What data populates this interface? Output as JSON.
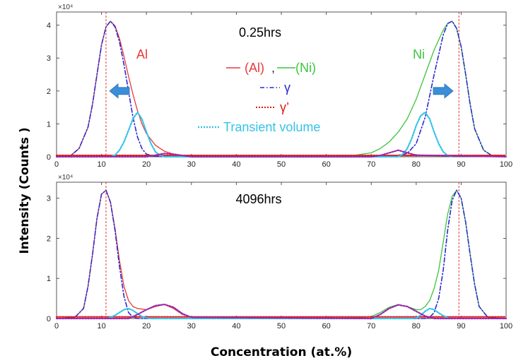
{
  "xlabel": "Concentration (at.%)",
  "ylabel": "Intensity (Counts )",
  "colors": {
    "al": "#e8383b",
    "ni": "#3cc43c",
    "gamma": "#2a2ad0",
    "gamma_prime": "#e01818",
    "transient": "#35c3e8",
    "overlap": "#9a2aa8",
    "arrow": "#3a8fd8",
    "refline": "#e53935"
  },
  "chart_data": [
    {
      "type": "line",
      "title": "0.25hrs",
      "exponent_label": "×10⁴",
      "xlim": [
        0,
        100
      ],
      "ylim": [
        0,
        4.4
      ],
      "x_ticks": [
        "0",
        "10",
        "20",
        "30",
        "40",
        "50",
        "60",
        "70",
        "80",
        "90",
        "100"
      ],
      "y_ticks": [
        "0",
        "1",
        "2",
        "3",
        "4"
      ],
      "reference_lines_x": [
        11.0,
        89.5
      ],
      "labels": {
        "al": "Al",
        "ni": "Ni"
      },
      "legend": {
        "al": "(Al)",
        "comma": ",",
        "ni": "(Ni)",
        "gamma": "γ",
        "gamma_prime": "γ’",
        "transient": "Transient volume"
      },
      "arrows": [
        {
          "direction": "left",
          "x": 14
        },
        {
          "direction": "right",
          "x": 86
        }
      ],
      "series": [
        {
          "name": "(Al)",
          "key": "al",
          "style": "solid",
          "x": [
            0,
            3,
            5,
            7,
            8,
            9,
            10,
            11,
            12,
            13,
            14,
            15,
            16,
            17,
            18,
            19,
            20,
            22,
            24,
            26,
            28,
            30,
            35,
            40
          ],
          "y": [
            0,
            0.02,
            0.25,
            0.9,
            1.6,
            2.5,
            3.4,
            3.95,
            4.12,
            3.98,
            3.6,
            3.05,
            2.45,
            1.9,
            1.4,
            1.0,
            0.7,
            0.35,
            0.17,
            0.08,
            0.04,
            0.02,
            0,
            0
          ]
        },
        {
          "name": "(Ni)",
          "key": "ni",
          "style": "solid",
          "x": [
            60,
            65,
            70,
            72,
            74,
            76,
            78,
            80,
            82,
            84,
            86,
            87,
            88,
            89,
            90,
            91,
            92,
            93,
            95,
            97,
            100
          ],
          "y": [
            0,
            0.02,
            0.12,
            0.25,
            0.45,
            0.75,
            1.15,
            1.75,
            2.5,
            3.25,
            3.85,
            4.05,
            4.12,
            3.9,
            3.35,
            2.5,
            1.6,
            0.85,
            0.2,
            0.02,
            0
          ]
        },
        {
          "name": "γ",
          "key": "gamma",
          "style": "dashdot",
          "x": [
            0,
            3,
            5,
            7,
            8,
            9,
            10,
            11,
            12,
            13,
            14,
            15,
            16,
            17,
            18,
            19,
            20,
            22,
            25,
            30,
            70,
            75,
            78,
            80,
            82,
            84,
            86,
            87,
            88,
            89,
            90,
            91,
            92,
            93,
            95,
            97,
            100
          ],
          "y": [
            0,
            0.02,
            0.25,
            0.9,
            1.6,
            2.5,
            3.4,
            3.95,
            4.12,
            3.95,
            3.5,
            2.8,
            2.0,
            1.2,
            0.6,
            0.25,
            0.08,
            0.01,
            0,
            0,
            0,
            0.02,
            0.1,
            0.4,
            1.2,
            2.5,
            3.7,
            4.05,
            4.12,
            3.9,
            3.35,
            2.5,
            1.6,
            0.85,
            0.2,
            0.02,
            0
          ]
        },
        {
          "name": "γ’",
          "key": "gamma_prime",
          "style": "dotted",
          "x": [
            0,
            10,
            20,
            30,
            40,
            50,
            60,
            70,
            80,
            90,
            100
          ],
          "y": [
            0.04,
            0.04,
            0.04,
            0.04,
            0.04,
            0.04,
            0.04,
            0.04,
            0.04,
            0.04,
            0.04
          ]
        },
        {
          "name": "Transient volume",
          "key": "transient",
          "style": "dotted",
          "x": [
            12,
            13,
            14,
            15,
            16,
            17,
            18,
            19,
            20,
            21,
            22,
            23,
            24,
            76,
            77,
            78,
            79,
            80,
            81,
            82,
            83,
            84,
            85,
            86,
            87,
            88
          ],
          "y": [
            0,
            0.05,
            0.2,
            0.45,
            0.8,
            1.15,
            1.35,
            1.15,
            0.75,
            0.4,
            0.15,
            0.04,
            0,
            0,
            0.08,
            0.25,
            0.55,
            0.95,
            1.25,
            1.35,
            1.15,
            0.75,
            0.4,
            0.15,
            0.04,
            0
          ]
        },
        {
          "name": "",
          "key": "overlap",
          "style": "dotted",
          "x": [
            0,
            20,
            22,
            24,
            26,
            28,
            30,
            70,
            72,
            74,
            76,
            78,
            80,
            100
          ],
          "y": [
            0,
            0,
            0.05,
            0.1,
            0.08,
            0.04,
            0,
            0,
            0.04,
            0.12,
            0.2,
            0.12,
            0.05,
            0
          ]
        }
      ]
    },
    {
      "type": "line",
      "title": "4096hrs",
      "exponent_label": "×10⁴",
      "xlim": [
        0,
        100
      ],
      "ylim": [
        0,
        3.4
      ],
      "x_ticks": [
        "0",
        "10",
        "20",
        "30",
        "40",
        "50",
        "60",
        "70",
        "80",
        "90",
        "100"
      ],
      "y_ticks": [
        "0",
        "1",
        "2",
        "3"
      ],
      "reference_lines_x": [
        11.0,
        89.5
      ],
      "series": [
        {
          "name": "(Al)",
          "key": "al",
          "style": "solid",
          "x": [
            0,
            4,
            6,
            7,
            8,
            9,
            10,
            11,
            12,
            13,
            14,
            15,
            16,
            17,
            18,
            20,
            22,
            24,
            26,
            28,
            30,
            35,
            40
          ],
          "y": [
            0,
            0.02,
            0.25,
            0.8,
            1.6,
            2.5,
            3.1,
            3.2,
            2.9,
            2.25,
            1.45,
            0.8,
            0.45,
            0.3,
            0.25,
            0.22,
            0.3,
            0.35,
            0.25,
            0.1,
            0.03,
            0,
            0
          ]
        },
        {
          "name": "(Ni)",
          "key": "ni",
          "style": "solid",
          "x": [
            60,
            68,
            70,
            72,
            74,
            76,
            78,
            80,
            81,
            82,
            83,
            84,
            85,
            86,
            87,
            88,
            89,
            90,
            91,
            92,
            93,
            94,
            96,
            100
          ],
          "y": [
            0,
            0.02,
            0.05,
            0.15,
            0.28,
            0.35,
            0.3,
            0.22,
            0.22,
            0.3,
            0.45,
            0.75,
            1.2,
            1.9,
            2.6,
            3.05,
            3.2,
            3.0,
            2.4,
            1.6,
            0.85,
            0.3,
            0.02,
            0
          ]
        },
        {
          "name": "γ",
          "key": "gamma",
          "style": "dashdot",
          "x": [
            0,
            4,
            6,
            7,
            8,
            9,
            10,
            11,
            12,
            13,
            14,
            15,
            16,
            17,
            18,
            20,
            80,
            82,
            83,
            84,
            85,
            86,
            87,
            88,
            89,
            90,
            91,
            92,
            93,
            94,
            96,
            100
          ],
          "y": [
            0,
            0.02,
            0.25,
            0.8,
            1.6,
            2.5,
            3.1,
            3.2,
            2.9,
            2.2,
            1.3,
            0.55,
            0.15,
            0.03,
            0,
            0,
            0,
            0,
            0.03,
            0.15,
            0.5,
            1.2,
            2.2,
            2.95,
            3.2,
            3.0,
            2.4,
            1.6,
            0.85,
            0.3,
            0.02,
            0
          ]
        },
        {
          "name": "γ’",
          "key": "gamma_prime",
          "style": "dotted",
          "x": [
            0,
            10,
            20,
            30,
            40,
            50,
            60,
            70,
            80,
            90,
            100
          ],
          "y": [
            0.04,
            0.04,
            0.04,
            0.04,
            0.04,
            0.04,
            0.04,
            0.04,
            0.04,
            0.04,
            0.04
          ]
        },
        {
          "name": "Transient volume",
          "key": "transient",
          "style": "dotted",
          "x": [
            11,
            12,
            13,
            14,
            15,
            16,
            17,
            18,
            19,
            20,
            21,
            79,
            80,
            81,
            82,
            83,
            84,
            85,
            86,
            87,
            88
          ],
          "y": [
            0,
            0.03,
            0.08,
            0.15,
            0.22,
            0.25,
            0.2,
            0.12,
            0.05,
            0.02,
            0,
            0,
            0.02,
            0.08,
            0.18,
            0.25,
            0.22,
            0.14,
            0.07,
            0.02,
            0
          ]
        },
        {
          "name": "",
          "key": "overlap",
          "style": "dotted",
          "x": [
            0,
            16,
            18,
            20,
            22,
            24,
            26,
            28,
            30,
            70,
            72,
            74,
            76,
            78,
            80,
            82,
            84,
            100
          ],
          "y": [
            0,
            0,
            0.1,
            0.22,
            0.32,
            0.35,
            0.28,
            0.12,
            0.03,
            0,
            0.1,
            0.25,
            0.34,
            0.3,
            0.18,
            0.06,
            0,
            0
          ]
        }
      ]
    }
  ]
}
